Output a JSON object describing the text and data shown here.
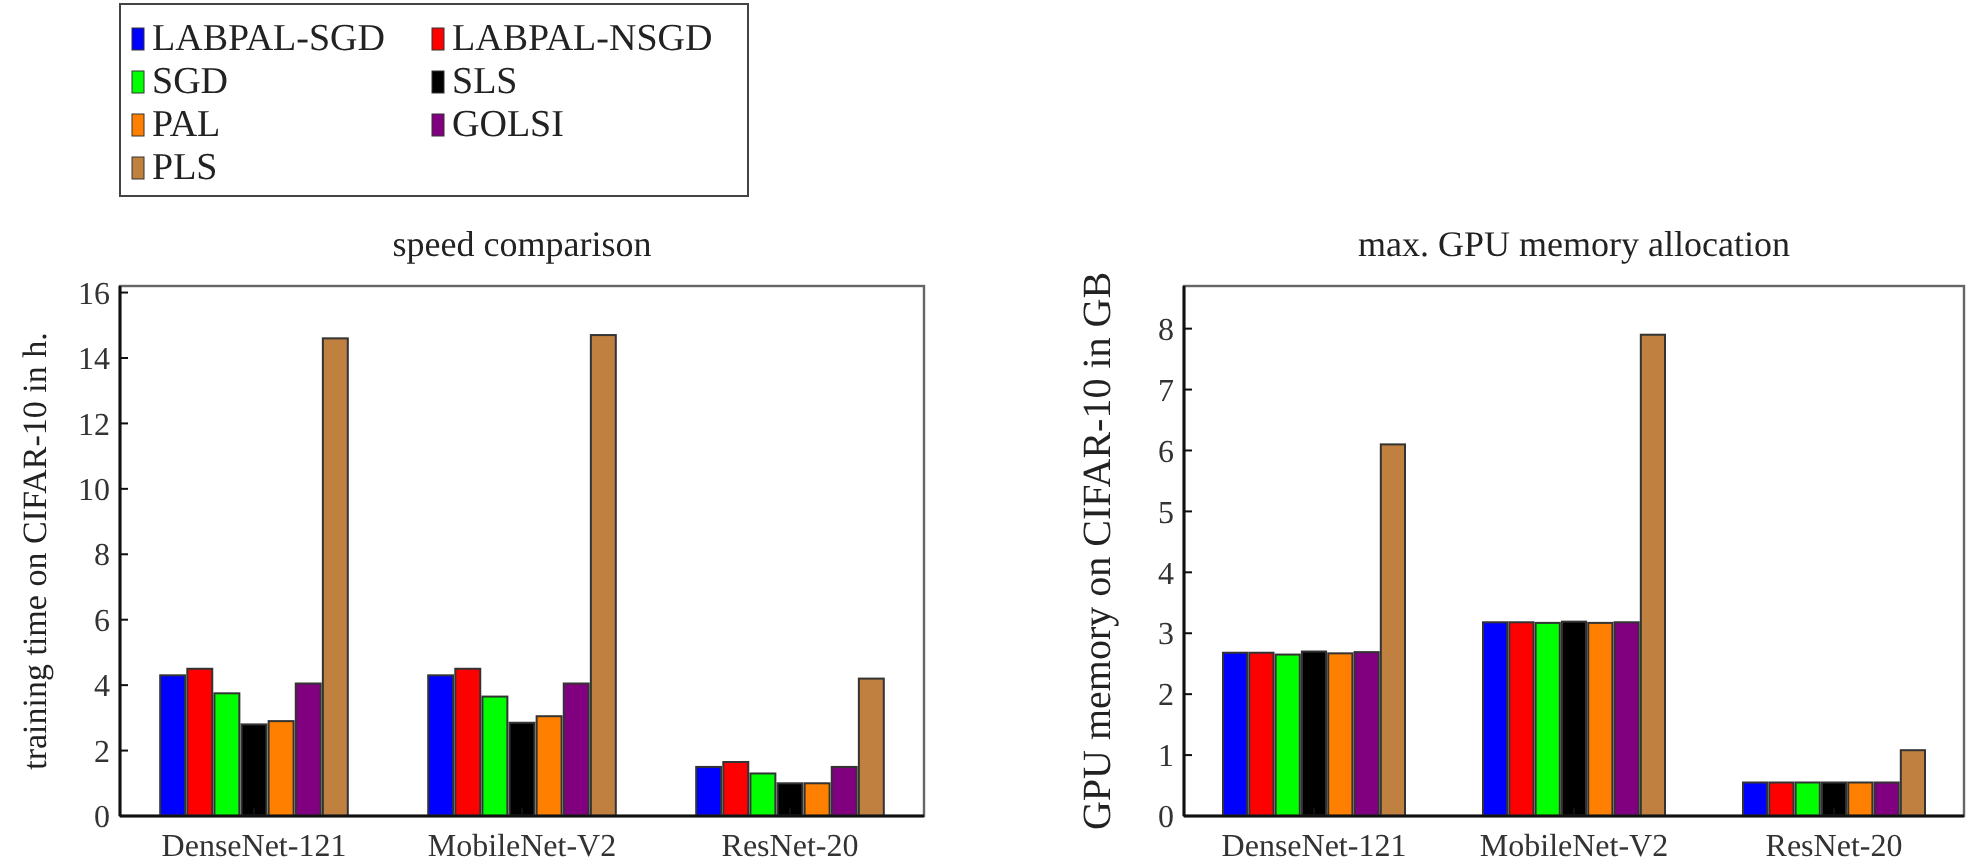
{
  "chart_data": [
    {
      "type": "bar",
      "title": "speed comparison",
      "ylabel": "training time on CIFAR-10 in h.",
      "categories": [
        "DenseNet-121",
        "MobileNet-V2",
        "ResNet-20"
      ],
      "ylim": [
        0,
        16.2
      ],
      "yticks": [
        0,
        2,
        4,
        6,
        8,
        10,
        12,
        14,
        16
      ],
      "grid": false,
      "legend": "top left",
      "series": [
        {
          "name": "LABPAL-SGD",
          "color": "#0000ff",
          "values": [
            4.3,
            4.3,
            1.5
          ]
        },
        {
          "name": "LABPAL-NSGD",
          "color": "#ff0000",
          "values": [
            4.5,
            4.5,
            1.65
          ]
        },
        {
          "name": "SGD",
          "color": "#00ff00",
          "values": [
            3.75,
            3.65,
            1.3
          ]
        },
        {
          "name": "SLS",
          "color": "#000000",
          "values": [
            2.8,
            2.85,
            1.0
          ]
        },
        {
          "name": "PAL",
          "color": "#ff8000",
          "values": [
            2.9,
            3.05,
            1.0
          ]
        },
        {
          "name": "GOLSI",
          "color": "#800080",
          "values": [
            4.05,
            4.05,
            1.5
          ]
        },
        {
          "name": "PLS",
          "color": "#bf8040",
          "values": [
            14.6,
            14.7,
            4.2
          ]
        }
      ]
    },
    {
      "type": "bar",
      "title": "max. GPU memory allocation",
      "ylabel": "GPU memory on CIFAR-10 in GB",
      "categories": [
        "DenseNet-121",
        "MobileNet-V2",
        "ResNet-20"
      ],
      "ylim": [
        0,
        8.7
      ],
      "yticks": [
        0,
        1,
        2,
        3,
        4,
        5,
        6,
        7,
        8
      ],
      "grid": false,
      "legend": false,
      "series": [
        {
          "color": "#0000ff",
          "values": [
            2.68,
            3.18,
            0.55
          ]
        },
        {
          "color": "#ff0000",
          "values": [
            2.68,
            3.18,
            0.55
          ]
        },
        {
          "color": "#00ff00",
          "values": [
            2.65,
            3.17,
            0.55
          ]
        },
        {
          "color": "#000000",
          "values": [
            2.7,
            3.19,
            0.55
          ]
        },
        {
          "color": "#ff8000",
          "values": [
            2.67,
            3.17,
            0.55
          ]
        },
        {
          "color": "#800080",
          "values": [
            2.69,
            3.18,
            0.55
          ]
        },
        {
          "color": "#bf8040",
          "values": [
            6.1,
            7.9,
            1.08
          ]
        }
      ]
    }
  ]
}
